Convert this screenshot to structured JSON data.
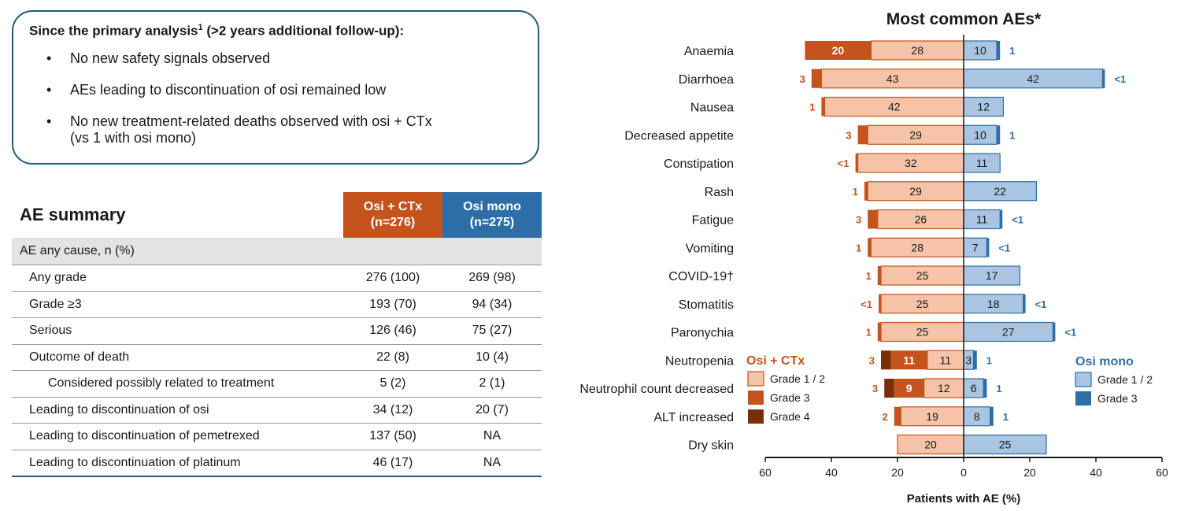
{
  "summary": {
    "heading": "Since the primary analysis",
    "heading_sup": "1",
    "heading_tail": " (>2 years additional follow-up):",
    "bullets": [
      "No new safety signals observed",
      "AEs leading to discontinuation of osi remained low",
      "No new treatment-related deaths observed with osi + CTx\n(vs 1 with osi mono)"
    ]
  },
  "table": {
    "title": "AE summary",
    "columns": [
      {
        "label": "Osi + CTx\n(n=276)",
        "color": "#c4541c"
      },
      {
        "label": "Osi mono\n(n=275)",
        "color": "#2e6ea8"
      }
    ],
    "section_label": "AE any cause, n (%)",
    "rows": [
      {
        "label": "Any grade",
        "osi_ctx": "276 (100)",
        "osi_mono": "269 (98)"
      },
      {
        "label": "Grade ≥3",
        "osi_ctx": "193 (70)",
        "osi_mono": "94 (34)"
      },
      {
        "label": "Serious",
        "osi_ctx": "126 (46)",
        "osi_mono": "75 (27)"
      },
      {
        "label": "Outcome of death",
        "osi_ctx": "22 (8)",
        "osi_mono": "10 (4)"
      },
      {
        "label": "Considered possibly related to treatment",
        "osi_ctx": "5 (2)",
        "osi_mono": "2 (1)",
        "indent": true
      },
      {
        "label": "Leading to discontinuation of osi",
        "osi_ctx": "34 (12)",
        "osi_mono": "20 (7)"
      },
      {
        "label": "Leading to discontinuation of pemetrexed",
        "osi_ctx": "137 (50)",
        "osi_mono": "NA"
      },
      {
        "label": "Leading to discontinuation of platinum",
        "osi_ctx": "46 (17)",
        "osi_mono": "NA"
      }
    ]
  },
  "chart_data": {
    "type": "bar",
    "orientation": "horizontal-diverging-stacked",
    "title": "Most common AEs*",
    "xlabel": "Patients with AE (%)",
    "xlim": [
      -60,
      60
    ],
    "xticks": [
      60,
      40,
      20,
      0,
      20,
      40,
      60
    ],
    "colors": {
      "osi_ctx_g12": "#f5c3a8",
      "osi_ctx_g3": "#c4541c",
      "osi_ctx_g4": "#7a2e0a",
      "osi_mono_g12": "#a9c5e2",
      "osi_mono_g3": "#2e6ea8"
    },
    "legend": {
      "osi_ctx_title": "Osi + CTx",
      "osi_ctx_items": [
        "Grade 1 / 2",
        "Grade 3",
        "Grade 4"
      ],
      "osi_mono_title": "Osi mono",
      "osi_mono_items": [
        "Grade 1 / 2",
        "Grade 3"
      ]
    },
    "categories": [
      "Anaemia",
      "Diarrhoea",
      "Nausea",
      "Decreased appetite",
      "Constipation",
      "Rash",
      "Fatigue",
      "Vomiting",
      "COVID-19†",
      "Stomatitis",
      "Paronychia",
      "Neutropenia",
      "Neutrophil count decreased",
      "ALT increased",
      "Dry skin"
    ],
    "series": [
      {
        "name": "Osi + CTx Grade 1 / 2",
        "values": [
          28,
          43,
          42,
          29,
          32,
          29,
          26,
          28,
          25,
          25,
          25,
          11,
          12,
          19,
          20
        ]
      },
      {
        "name": "Osi + CTx Grade 3",
        "values": [
          20,
          3,
          1,
          3,
          0.5,
          1,
          3,
          1,
          1,
          0.5,
          1,
          11,
          9,
          2,
          0
        ]
      },
      {
        "name": "Osi + CTx Grade 4",
        "values": [
          0,
          0,
          0,
          0,
          0,
          0,
          0,
          0,
          0,
          0,
          0,
          3,
          3,
          0,
          0
        ]
      },
      {
        "name": "Osi mono Grade 1 / 2",
        "values": [
          10,
          42,
          12,
          10,
          11,
          22,
          11,
          7,
          17,
          18,
          27,
          3,
          6,
          8,
          25
        ]
      },
      {
        "name": "Osi mono Grade 3",
        "values": [
          1,
          0.5,
          0,
          1,
          0,
          0,
          0.5,
          0.5,
          0,
          0.5,
          0.5,
          1,
          1,
          1,
          0
        ]
      }
    ],
    "bar_labels": {
      "osi_ctx_g12": [
        "28",
        "43",
        "42",
        "29",
        "32",
        "29",
        "26",
        "28",
        "25",
        "25",
        "25",
        "11",
        "12",
        "19",
        "20"
      ],
      "osi_ctx_g3_inside": [
        "20",
        "",
        "",
        "",
        "",
        "",
        "",
        "",
        "",
        "",
        "",
        "11",
        "9",
        "",
        ""
      ],
      "osi_ctx_side": [
        "",
        "3",
        "1",
        "3",
        "<1",
        "1",
        "3",
        "1",
        "1",
        "<1",
        "1",
        "3",
        "3",
        "2",
        ""
      ],
      "osi_mono_g12": [
        "10",
        "42",
        "12",
        "10",
        "11",
        "22",
        "11",
        "7",
        "17",
        "18",
        "27",
        "3",
        "6",
        "8",
        "25"
      ],
      "osi_mono_side": [
        "1",
        "<1",
        "",
        "1",
        "",
        "",
        "<1",
        "<1",
        "",
        "<1",
        "<1",
        "1",
        "1",
        "1",
        ""
      ]
    }
  }
}
